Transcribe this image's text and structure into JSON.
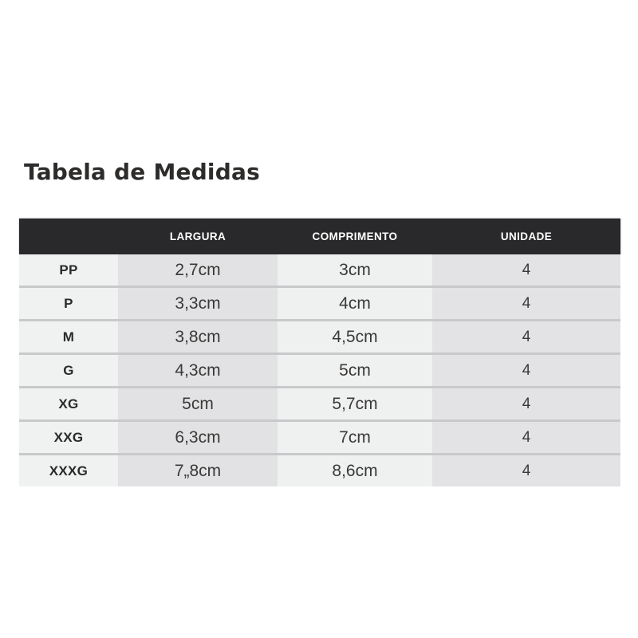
{
  "title": "Tabela de Medidas",
  "chart_data": {
    "type": "table",
    "title": "Tabela de Medidas",
    "columns": [
      "LARGURA",
      "COMPRIMENTO",
      "UNIDADE"
    ],
    "row_header_column": "size",
    "rows": [
      {
        "size": "PP",
        "largura": "2,7cm",
        "comprimento": "3cm",
        "unidade": "4"
      },
      {
        "size": "P",
        "largura": "3,3cm",
        "comprimento": "4cm",
        "unidade": "4"
      },
      {
        "size": "M",
        "largura": "3,8cm",
        "comprimento": "4,5cm",
        "unidade": "4"
      },
      {
        "size": "G",
        "largura": "4,3cm",
        "comprimento": "5cm",
        "unidade": "4"
      },
      {
        "size": "XG",
        "largura": "5cm",
        "comprimento": "5,7cm",
        "unidade": "4"
      },
      {
        "size": "XXG",
        "largura": "6,3cm",
        "comprimento": "7cm",
        "unidade": "4"
      },
      {
        "size": "XXXG",
        "largura": "7„8cm",
        "comprimento": "8,6cm",
        "unidade": "4"
      }
    ]
  },
  "colors": {
    "background": "#ffffff",
    "title_text": "#2d2c2b",
    "header_bg": "#29292b",
    "header_text": "#ffffff",
    "column_light": "#f0f2f1",
    "column_dark": "#e2e2e4",
    "row_separator": "#c9c9cb",
    "size_text": "#2a2a2a",
    "value_text": "#3a3937"
  }
}
